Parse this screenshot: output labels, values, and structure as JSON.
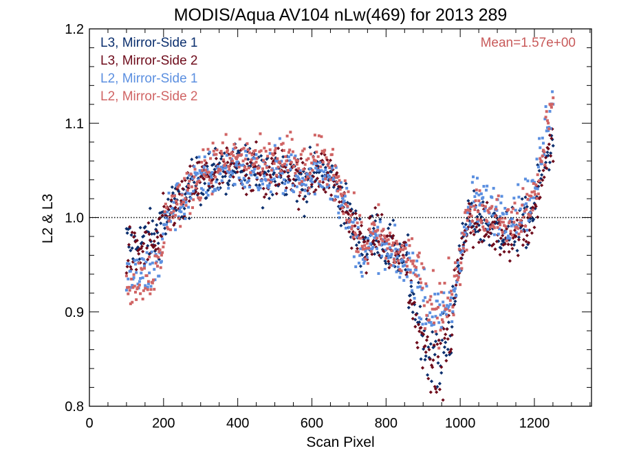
{
  "chart_data": {
    "type": "scatter",
    "title": "MODIS/Aqua AV104 nLw(469) for 2013 289",
    "xlabel": "Scan Pixel",
    "ylabel": "L2 & L3",
    "xlim": [
      0,
      1354
    ],
    "ylim": [
      0.8,
      1.2
    ],
    "x_ticks": [
      0,
      200,
      400,
      600,
      800,
      1000,
      1200
    ],
    "x_tick_labels": [
      "0",
      "200",
      "400",
      "600",
      "800",
      "1000",
      "1200"
    ],
    "y_ticks": [
      0.8,
      0.9,
      1.0,
      1.1,
      1.2
    ],
    "y_tick_labels": [
      "0.8",
      "0.9",
      "1.0",
      "1.1",
      "1.2"
    ],
    "reference_line": 1.0,
    "annotation": "Mean=1.57e+00",
    "annotation_color": "#c85a5a",
    "legend_position": "top-left",
    "profile": {
      "x": [
        100,
        120,
        140,
        160,
        180,
        200,
        220,
        240,
        260,
        280,
        300,
        320,
        340,
        360,
        380,
        400,
        420,
        440,
        460,
        480,
        500,
        520,
        540,
        560,
        580,
        600,
        620,
        640,
        660,
        680,
        700,
        720,
        740,
        760,
        780,
        800,
        820,
        840,
        860,
        880,
        900,
        920,
        940,
        960,
        980,
        1000,
        1020,
        1040,
        1060,
        1080,
        1100,
        1120,
        1140,
        1160,
        1180,
        1200,
        1220,
        1240,
        1250
      ],
      "y": [
        0.96,
        0.955,
        0.96,
        0.965,
        0.965,
        0.99,
        1.01,
        1.015,
        1.02,
        1.035,
        1.04,
        1.045,
        1.045,
        1.05,
        1.05,
        1.055,
        1.05,
        1.05,
        1.045,
        1.04,
        1.05,
        1.05,
        1.055,
        1.04,
        1.035,
        1.045,
        1.05,
        1.045,
        1.04,
        1.02,
        1.0,
        0.985,
        0.97,
        0.975,
        0.985,
        0.97,
        0.965,
        0.96,
        0.955,
        0.94,
        0.915,
        0.9,
        0.89,
        0.905,
        0.92,
        0.95,
        1.0,
        1.01,
        1.005,
        1.0,
        1.0,
        0.995,
        0.995,
        1.0,
        1.005,
        1.02,
        1.06,
        1.09,
        1.095
      ]
    },
    "series": [
      {
        "name": "L3, Mirror-Side 1",
        "color": "#0b2f6e",
        "marker": "diamond",
        "spread": 0.013,
        "offsets": [
          {
            "x": [
              100,
              200
            ],
            "dy": 0.015
          },
          {
            "x": [
              860,
              980
            ],
            "dy": -0.04
          },
          {
            "x": [
              1030,
              1230
            ],
            "dy": -0.01
          },
          {
            "x": [
              1230,
              1260
            ],
            "dy": -0.02
          }
        ]
      },
      {
        "name": "L3, Mirror-Side 2",
        "color": "#6e0b1b",
        "marker": "diamond",
        "spread": 0.013,
        "offsets": [
          {
            "x": [
              100,
              200
            ],
            "dy": 0.005
          },
          {
            "x": [
              860,
              980
            ],
            "dy": -0.045
          },
          {
            "x": [
              1030,
              1230
            ],
            "dy": -0.015
          },
          {
            "x": [
              1230,
              1260
            ],
            "dy": -0.02
          }
        ]
      },
      {
        "name": "L2, Mirror-Side 1",
        "color": "#5b8fe0",
        "marker": "square",
        "spread": 0.013,
        "offsets": [
          {
            "x": [
              100,
              200
            ],
            "dy": -0.02
          },
          {
            "x": [
              700,
              860
            ],
            "dy": -0.01
          },
          {
            "x": [
              1030,
              1230
            ],
            "dy": 0.01
          },
          {
            "x": [
              1230,
              1260
            ],
            "dy": 0.025
          }
        ]
      },
      {
        "name": "L2, Mirror-Side 2",
        "color": "#d06464",
        "marker": "square",
        "spread": 0.013,
        "offsets": [
          {
            "x": [
              100,
              200
            ],
            "dy": -0.025
          },
          {
            "x": [
              300,
              700
            ],
            "dy": 0.012
          },
          {
            "x": [
              860,
              980
            ],
            "dy": 0.01
          },
          {
            "x": [
              1230,
              1260
            ],
            "dy": 0.025
          }
        ]
      }
    ]
  }
}
